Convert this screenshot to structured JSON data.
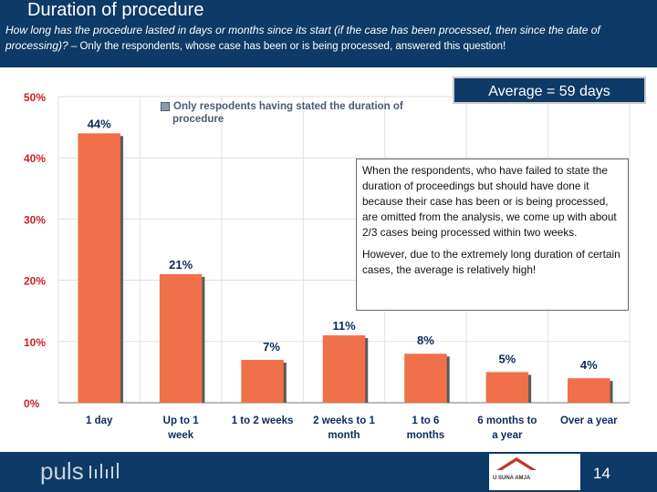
{
  "header": {
    "title": "Duration of procedure",
    "question": "How long has the procedure lasted in days or months since its start (if the case has been processed, then since the date of processing)?",
    "note": " – Only the respondents, whose case has been or is being processed, answered this question!"
  },
  "average_label": "Average = 59 days",
  "legend_label_1": "Only respodents having stated the duration of",
  "legend_label_2": "procedure",
  "annotation": {
    "paragraph_1": "When the respondents, who have failed to state the duration of proceedings but should have done it because their case has been or is being processed, are omitted from the analysis, we come up with about 2/3 cases being processed within two weeks.",
    "paragraph_2": "However, due to the extremely long duration of certain cases, the average is relatively high!"
  },
  "footer": {
    "brand": "puls",
    "logo_text": "U SUNA AMJA",
    "page_number": "14"
  },
  "colors": {
    "bar": "#f07049",
    "bar_shadow": "#5a5a5a",
    "header_bg": "#0d3a66"
  },
  "chart_data": {
    "type": "bar",
    "categories": [
      [
        "1 day"
      ],
      [
        "Up to 1",
        "week"
      ],
      [
        "1 to 2 weeks"
      ],
      [
        "2 weeks to 1",
        "month"
      ],
      [
        "1 to 6",
        "months"
      ],
      [
        "6 months to",
        "a year"
      ],
      [
        "Over a year"
      ]
    ],
    "values": [
      44,
      21,
      7,
      11,
      8,
      5,
      4
    ],
    "data_labels": [
      "44%",
      "21%",
      "7%",
      "11%",
      "8%",
      "5%",
      "4%"
    ],
    "y_ticks": [
      {
        "value": 0,
        "label": "0%"
      },
      {
        "value": 10,
        "label": "10%"
      },
      {
        "value": 20,
        "label": "20%"
      },
      {
        "value": 30,
        "label": "30%"
      },
      {
        "value": 40,
        "label": "40%"
      },
      {
        "value": 50,
        "label": "50%"
      }
    ],
    "ylim": [
      0,
      50
    ],
    "grid": true,
    "legend": "top-left"
  }
}
